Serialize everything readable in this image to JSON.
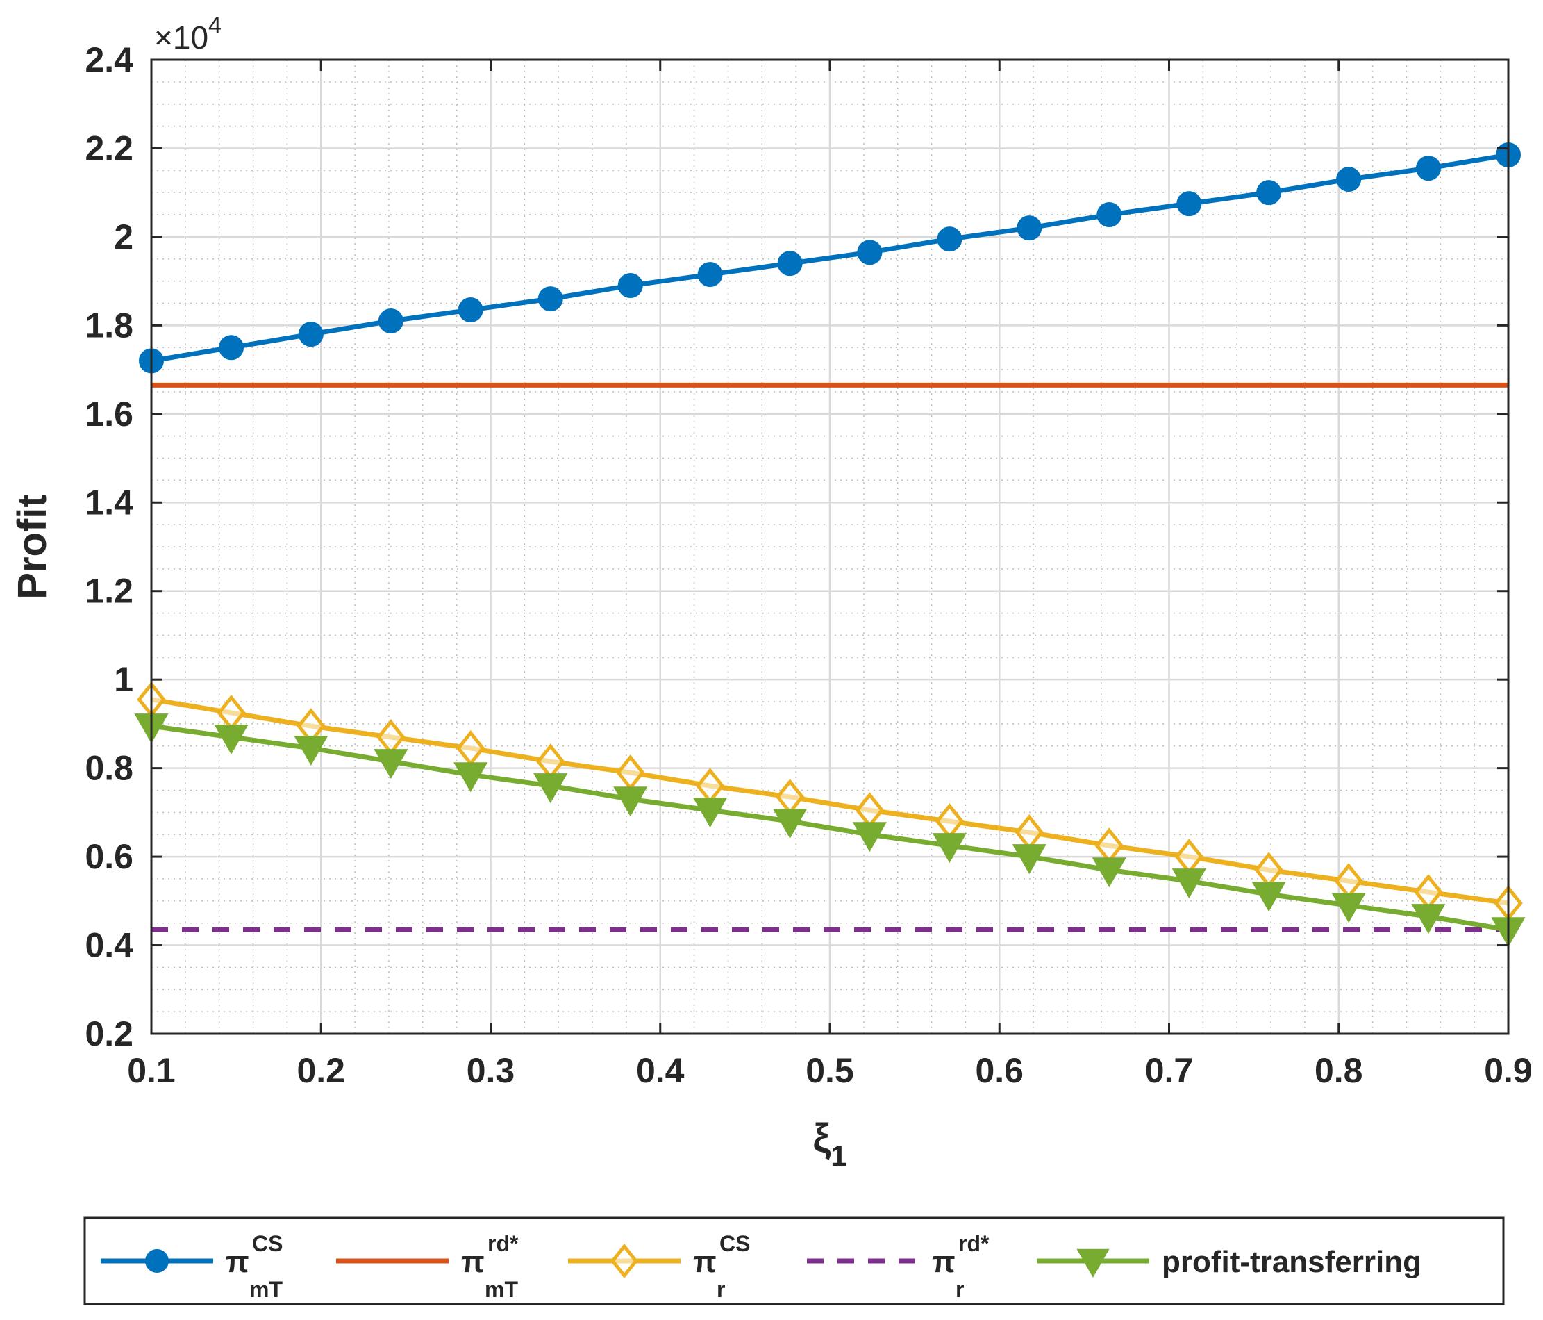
{
  "chart_data": {
    "type": "line",
    "xlabel": "ξ",
    "xlabel_subscript": "1",
    "ylabel": "Profit",
    "y_exponent_label": "×10",
    "y_exponent_power": "4",
    "xlim": [
      0.1,
      0.9
    ],
    "ylim": [
      2000,
      24000
    ],
    "xticks": [
      0.1,
      0.2,
      0.3,
      0.4,
      0.5,
      0.6,
      0.7,
      0.8,
      0.9
    ],
    "xtick_labels": [
      "0.1",
      "0.2",
      "0.3",
      "0.4",
      "0.5",
      "0.6",
      "0.7",
      "0.8",
      "0.9"
    ],
    "yticks": [
      2000,
      4000,
      6000,
      8000,
      10000,
      12000,
      14000,
      16000,
      18000,
      20000,
      22000,
      24000
    ],
    "ytick_labels": [
      "0.2",
      "0.4",
      "0.6",
      "0.8",
      "1",
      "1.2",
      "1.4",
      "1.6",
      "1.8",
      "2",
      "2.2",
      "2.4"
    ],
    "grid": "major and minor",
    "legend_position": "bottom (outside, horizontal)",
    "x": [
      0.1,
      0.1471,
      0.1941,
      0.2412,
      0.2882,
      0.3353,
      0.3824,
      0.4294,
      0.4765,
      0.5235,
      0.5706,
      0.6176,
      0.6647,
      0.7118,
      0.7588,
      0.8059,
      0.8529,
      0.9
    ],
    "series": [
      {
        "name": "pi_mT_CS",
        "legend_main": "π",
        "legend_sup": "CS",
        "legend_sub": "mT",
        "color": "#0072bd",
        "marker": "circle",
        "dash": "solid",
        "values": [
          17200,
          17500,
          17800,
          18100,
          18350,
          18600,
          18900,
          19150,
          19400,
          19650,
          19950,
          20200,
          20500,
          20750,
          21000,
          21300,
          21550,
          21850
        ]
      },
      {
        "name": "pi_mT_rd",
        "legend_main": "π",
        "legend_sup": "rd*",
        "legend_sub": "mT",
        "color": "#d95319",
        "marker": "none",
        "dash": "solid",
        "values": [
          16650,
          16650,
          16650,
          16650,
          16650,
          16650,
          16650,
          16650,
          16650,
          16650,
          16650,
          16650,
          16650,
          16650,
          16650,
          16650,
          16650,
          16650
        ]
      },
      {
        "name": "pi_r_CS",
        "legend_main": "π",
        "legend_sup": "CS",
        "legend_sub": "r",
        "color": "#edb120",
        "marker": "diamond",
        "dash": "solid",
        "values": [
          9550,
          9250,
          8950,
          8700,
          8450,
          8150,
          7900,
          7600,
          7350,
          7050,
          6800,
          6550,
          6250,
          6000,
          5700,
          5450,
          5200,
          4950
        ]
      },
      {
        "name": "pi_r_rd",
        "legend_main": "π",
        "legend_sup": "rd*",
        "legend_sub": "r",
        "color": "#7e2f8e",
        "marker": "none",
        "dash": "dashed",
        "values": [
          4350,
          4350,
          4350,
          4350,
          4350,
          4350,
          4350,
          4350,
          4350,
          4350,
          4350,
          4350,
          4350,
          4350,
          4350,
          4350,
          4350,
          4350
        ]
      },
      {
        "name": "profit-transferring",
        "legend_main": "profit-transferring",
        "legend_sup": "",
        "legend_sub": "",
        "color": "#77ac30",
        "marker": "triangle-down",
        "dash": "solid",
        "values": [
          8950,
          8700,
          8450,
          8150,
          7850,
          7600,
          7300,
          7050,
          6800,
          6500,
          6250,
          6000,
          5700,
          5450,
          5150,
          4900,
          4650,
          4350
        ]
      }
    ]
  }
}
